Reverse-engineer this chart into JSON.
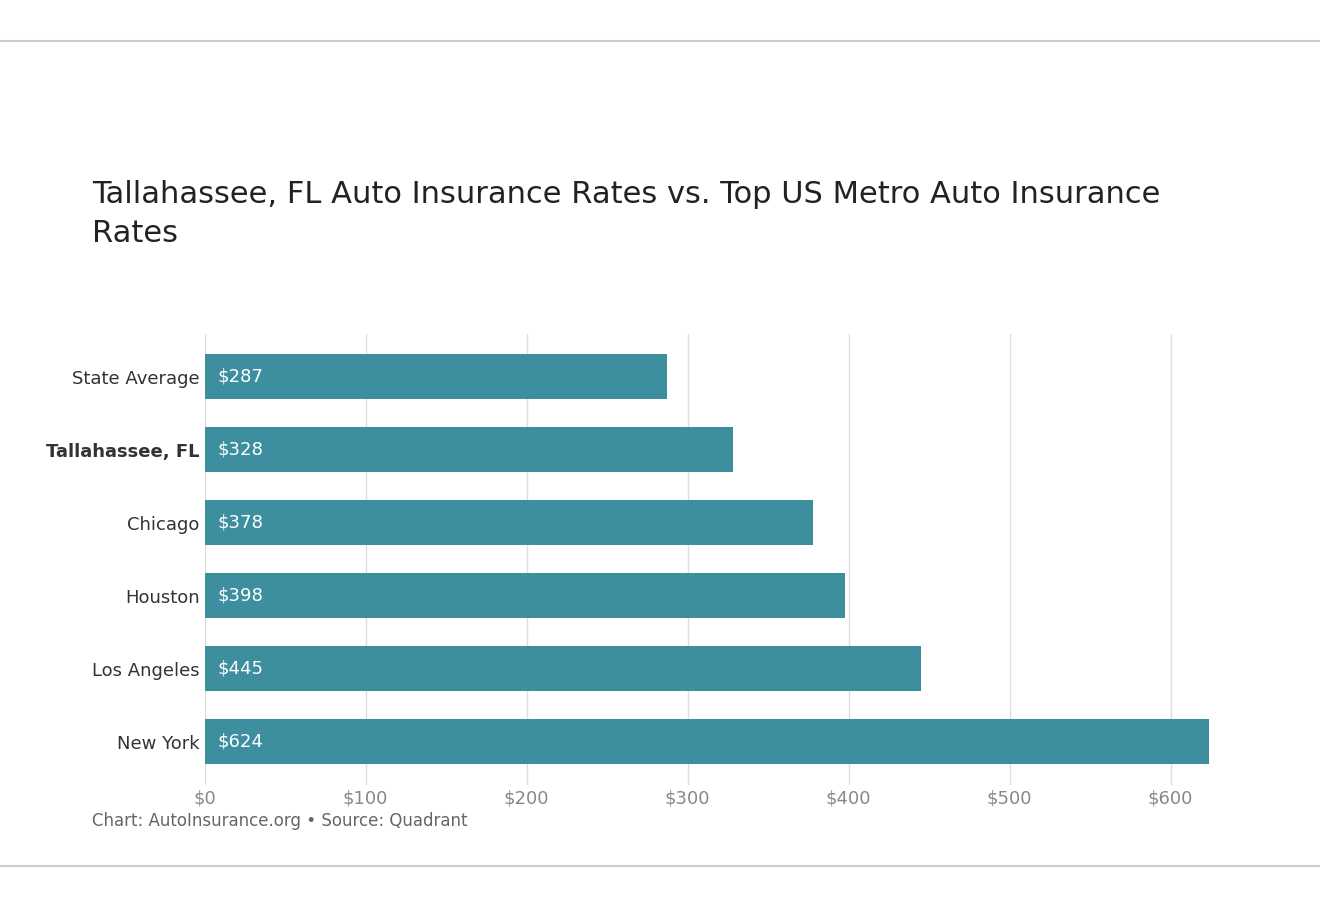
{
  "title": "Tallahassee, FL Auto Insurance Rates vs. Top US Metro Auto Insurance\nRates",
  "categories": [
    "New York",
    "Los Angeles",
    "Houston",
    "Chicago",
    "Tallahassee, FL",
    "State Average"
  ],
  "values": [
    624,
    445,
    398,
    378,
    328,
    287
  ],
  "labels": [
    "$624",
    "$445",
    "$398",
    "$378",
    "$328",
    "$287"
  ],
  "bar_color": "#3d8fa0",
  "label_color": "#ffffff",
  "title_fontsize": 22,
  "label_fontsize": 13,
  "tick_fontsize": 13,
  "tallahassee_index": 4,
  "xlim": [
    0,
    660
  ],
  "xticks": [
    0,
    100,
    200,
    300,
    400,
    500,
    600
  ],
  "xtick_labels": [
    "$0",
    "$100",
    "$200",
    "$300",
    "$400",
    "$500",
    "$600"
  ],
  "background_color": "#ffffff",
  "footer_text": "Chart: AutoInsurance.org • Source: Quadrant",
  "footer_fontsize": 12,
  "footer_color": "#666666",
  "grid_color": "#dddddd",
  "separator_line_color": "#cccccc",
  "bar_height": 0.62
}
